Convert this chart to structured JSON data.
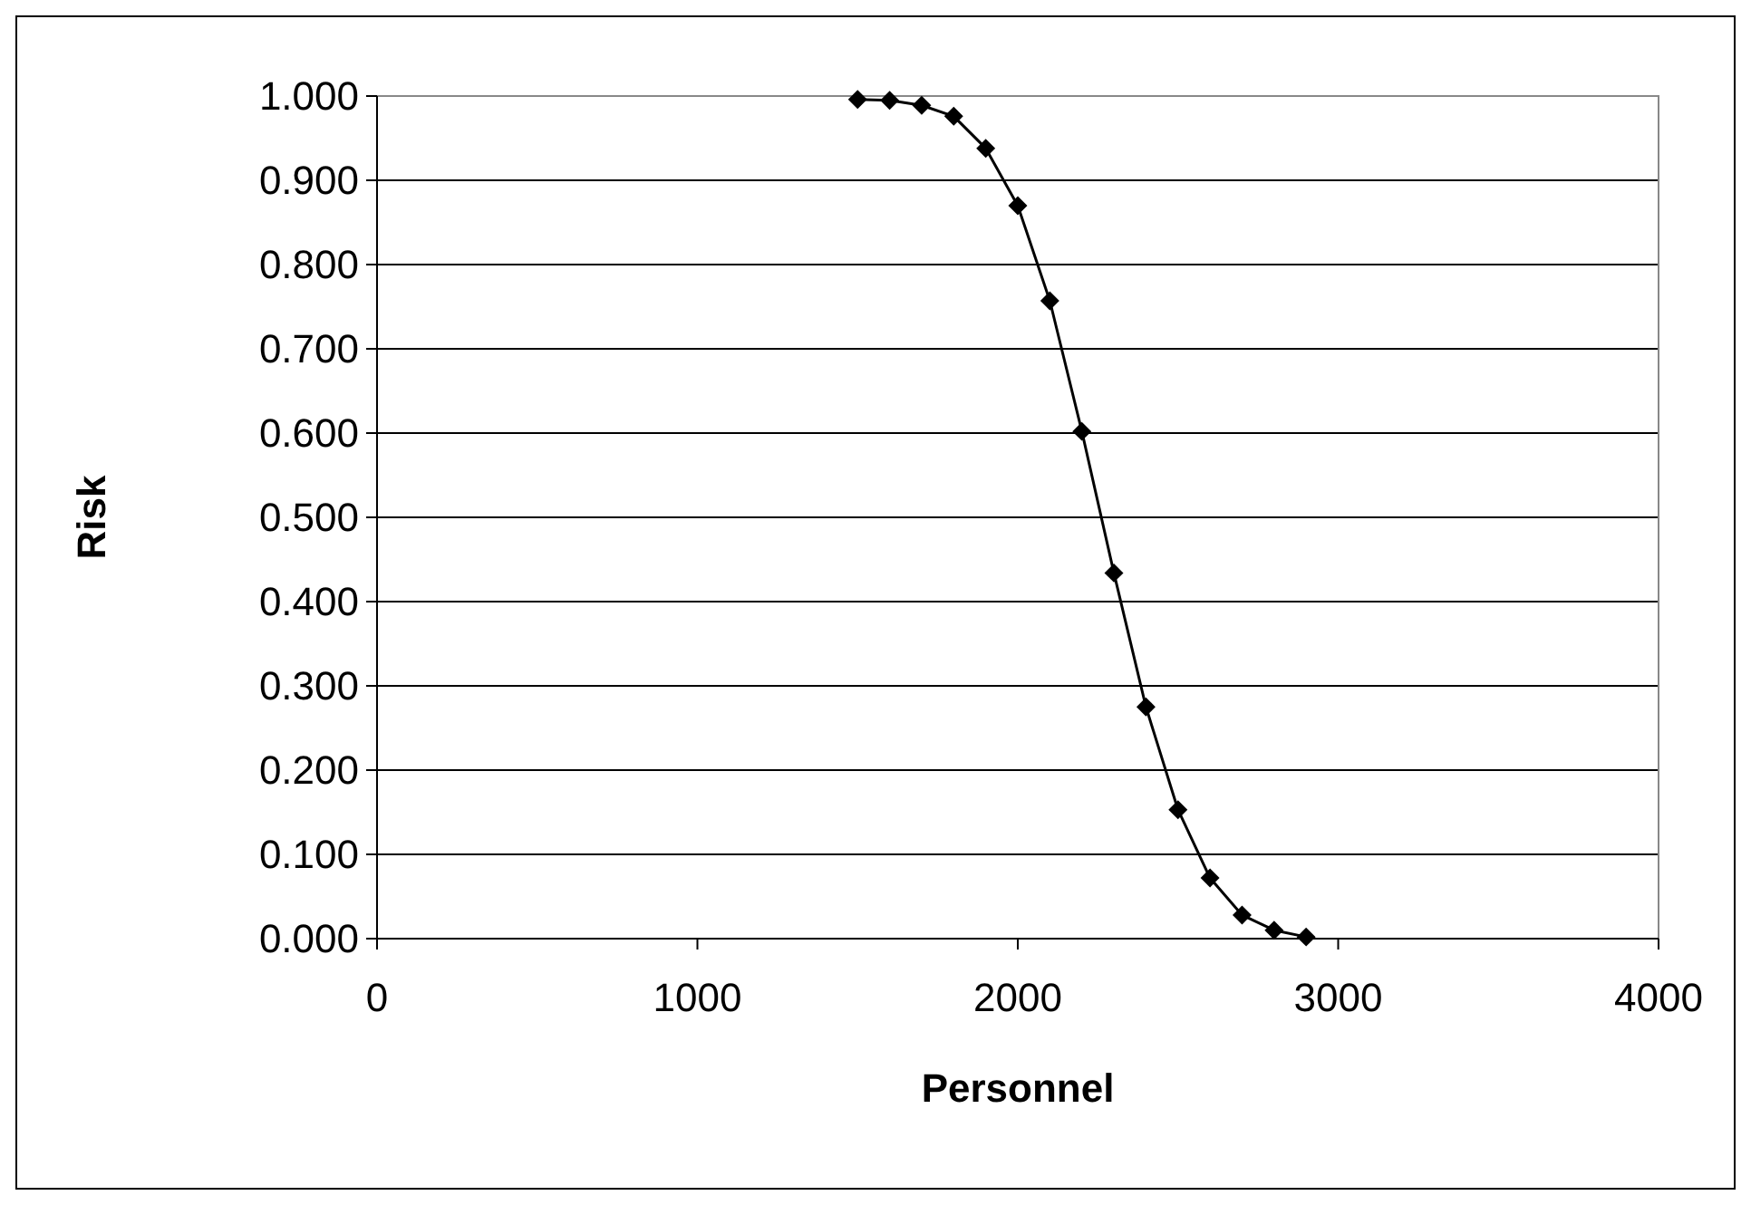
{
  "chart_data": {
    "type": "line",
    "xlabel": "Personnel",
    "ylabel": "Risk",
    "x": [
      1500,
      1600,
      1700,
      1800,
      1900,
      2000,
      2100,
      2200,
      2300,
      2400,
      2500,
      2600,
      2700,
      2800,
      2900
    ],
    "series": [
      {
        "color": "#000000",
        "values": [
          0.996,
          0.995,
          0.989,
          0.976,
          0.938,
          0.87,
          0.757,
          0.602,
          0.434,
          0.275,
          0.153,
          0.072,
          0.028,
          0.01,
          0.002
        ]
      }
    ],
    "xlim": [
      0,
      4000
    ],
    "xticks": [
      0,
      1000,
      2000,
      3000,
      4000
    ],
    "ylim": [
      0,
      1
    ],
    "yticks": [
      {
        "value": 0,
        "label": "0.000"
      },
      {
        "value": 0.1,
        "label": "0.100"
      },
      {
        "value": 0.2,
        "label": "0.200"
      },
      {
        "value": 0.3,
        "label": "0.300"
      },
      {
        "value": 0.4,
        "label": "0.400"
      },
      {
        "value": 0.5,
        "label": "0.500"
      },
      {
        "value": 0.6,
        "label": "0.600"
      },
      {
        "value": 0.7,
        "label": "0.700"
      },
      {
        "value": 0.8,
        "label": "0.800"
      },
      {
        "value": 0.9,
        "label": "0.900"
      },
      {
        "value": 1,
        "label": "1.000"
      }
    ],
    "grid": "y",
    "marker": "diamond",
    "line_style": "solid"
  }
}
